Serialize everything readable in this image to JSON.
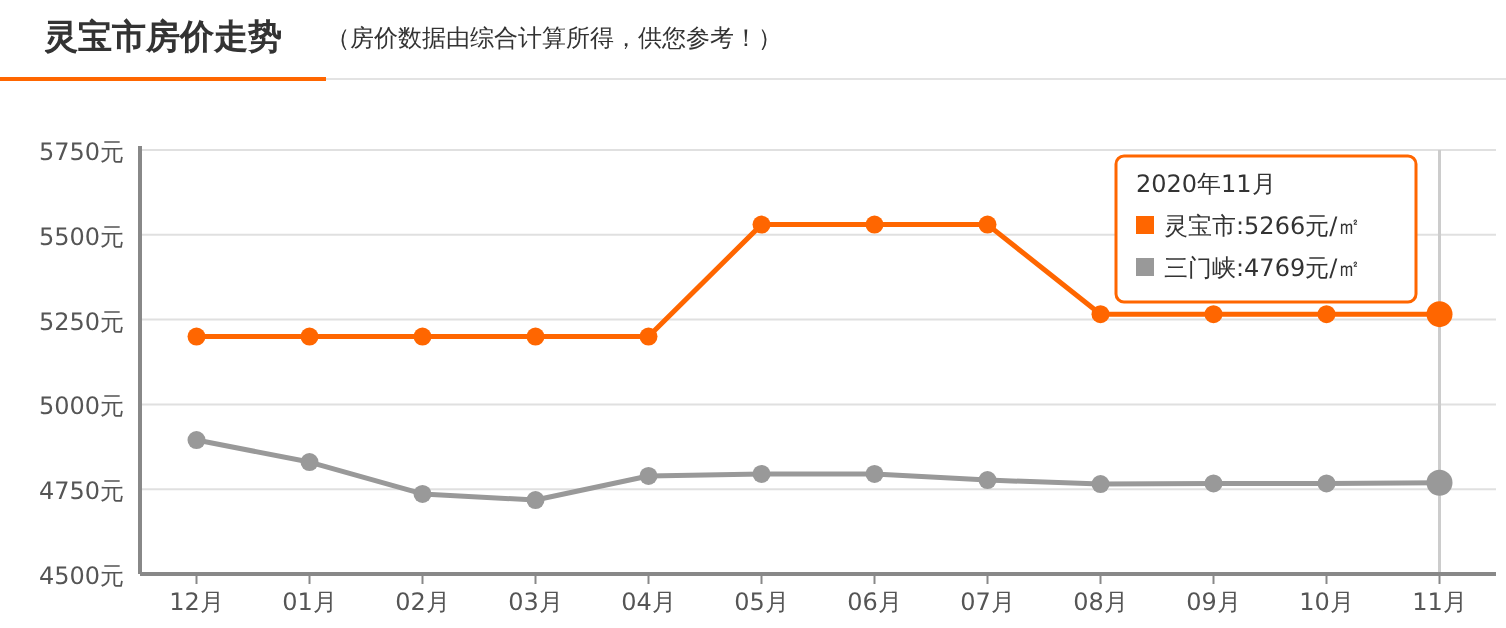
{
  "chart_data": {
    "type": "line",
    "title": "灵宝市房价走势",
    "subtitle": "（房价数据由综合计算所得，供您参考！）",
    "categories": [
      "12月",
      "01月",
      "02月",
      "03月",
      "04月",
      "05月",
      "06月",
      "07月",
      "08月",
      "09月",
      "10月",
      "11月"
    ],
    "series": [
      {
        "name": "灵宝市",
        "color": "#ff6600",
        "values": [
          5200,
          5200,
          5200,
          5200,
          5200,
          5530,
          5530,
          5530,
          5266,
          5266,
          5266,
          5266
        ]
      },
      {
        "name": "三门峡",
        "color": "#999999",
        "values": [
          4895,
          4830,
          4736,
          4718,
          4789,
          4795,
          4795,
          4777,
          4765,
          4767,
          4767,
          4769
        ]
      }
    ],
    "ylim": [
      4500,
      5750
    ],
    "yticks": [
      {
        "value": 4500,
        "label": "4500元"
      },
      {
        "value": 4750,
        "label": "4750元"
      },
      {
        "value": 5000,
        "label": "5000元"
      },
      {
        "value": 5250,
        "label": "5250元"
      },
      {
        "value": 5500,
        "label": "5500元"
      },
      {
        "value": 5750,
        "label": "5750元"
      }
    ],
    "grid": "y",
    "marker": "circle",
    "line_style": "solid",
    "legend": "top right",
    "legend_title": "2020年11月",
    "annotations": [
      ":5266元/㎡",
      ":4769元/㎡"
    ],
    "ref_lines": [
      {
        "axis": "x",
        "value": "11月",
        "color": "#cccccc"
      }
    ]
  }
}
